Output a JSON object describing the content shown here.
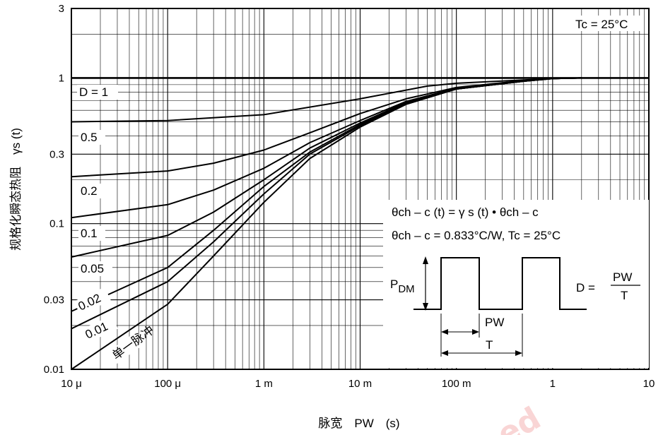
{
  "chart_data": {
    "type": "line",
    "x_scale": "log",
    "y_scale": "log",
    "xlim": [
      1e-05,
      10
    ],
    "ylim": [
      0.01,
      3
    ],
    "xlabel": "脉宽　PW　(s)",
    "ylabel": "规格化瞬态热阻　γs (t)",
    "x_ticks": [
      {
        "value": 1e-05,
        "label": "10 μ"
      },
      {
        "value": 0.0001,
        "label": "100 μ"
      },
      {
        "value": 0.001,
        "label": "1 m"
      },
      {
        "value": 0.01,
        "label": "10 m"
      },
      {
        "value": 0.1,
        "label": "100 m"
      },
      {
        "value": 1,
        "label": "1"
      },
      {
        "value": 10,
        "label": "10"
      }
    ],
    "y_ticks": [
      {
        "value": 0.01,
        "label": "0.01"
      },
      {
        "value": 0.03,
        "label": "0.03"
      },
      {
        "value": 0.1,
        "label": "0.1"
      },
      {
        "value": 0.3,
        "label": "0.3"
      },
      {
        "value": 1,
        "label": "1"
      },
      {
        "value": 3,
        "label": "3"
      }
    ],
    "annotation_tc": "Tc = 25°C",
    "series": [
      {
        "name": "D = 1",
        "x": [
          1e-05,
          10
        ],
        "y": [
          1,
          1
        ]
      },
      {
        "name": "0.5",
        "x": [
          1e-05,
          0.0001,
          0.001,
          0.01,
          0.05,
          0.1,
          0.5,
          1,
          2
        ],
        "y": [
          0.5,
          0.51,
          0.56,
          0.72,
          0.88,
          0.92,
          0.97,
          0.99,
          1.0
        ]
      },
      {
        "name": "0.2",
        "x": [
          1e-05,
          0.0001,
          0.0003,
          0.001,
          0.003,
          0.01,
          0.03,
          0.1,
          0.5,
          1,
          2
        ],
        "y": [
          0.21,
          0.23,
          0.26,
          0.32,
          0.42,
          0.57,
          0.72,
          0.86,
          0.96,
          0.99,
          1.0
        ]
      },
      {
        "name": "0.1",
        "x": [
          1e-05,
          0.0001,
          0.0003,
          0.001,
          0.003,
          0.01,
          0.03,
          0.1,
          0.5,
          1,
          2
        ],
        "y": [
          0.11,
          0.135,
          0.17,
          0.24,
          0.36,
          0.51,
          0.69,
          0.85,
          0.96,
          0.99,
          1.0
        ]
      },
      {
        "name": "0.05",
        "x": [
          1e-05,
          0.0001,
          0.0003,
          0.001,
          0.003,
          0.01,
          0.03,
          0.1,
          0.5,
          1,
          2
        ],
        "y": [
          0.059,
          0.083,
          0.12,
          0.2,
          0.33,
          0.49,
          0.68,
          0.84,
          0.95,
          0.99,
          1.0
        ]
      },
      {
        "name": "0.02",
        "x": [
          1e-05,
          0.0001,
          0.0003,
          0.001,
          0.003,
          0.01,
          0.03,
          0.1,
          0.5,
          1,
          2
        ],
        "y": [
          0.025,
          0.05,
          0.09,
          0.18,
          0.31,
          0.48,
          0.67,
          0.84,
          0.95,
          0.99,
          1.0
        ]
      },
      {
        "name": "0.01",
        "x": [
          1e-05,
          0.0001,
          0.0003,
          0.001,
          0.003,
          0.01,
          0.03,
          0.1,
          0.5,
          1,
          2
        ],
        "y": [
          0.019,
          0.04,
          0.075,
          0.16,
          0.3,
          0.47,
          0.66,
          0.84,
          0.95,
          0.99,
          1.0
        ]
      },
      {
        "name": "单一脉冲",
        "x": [
          1e-05,
          0.0001,
          0.0003,
          0.001,
          0.003,
          0.01,
          0.03,
          0.1,
          0.5,
          1,
          2
        ],
        "y": [
          0.01,
          0.028,
          0.06,
          0.14,
          0.28,
          0.46,
          0.66,
          0.84,
          0.95,
          0.99,
          1.0
        ]
      }
    ],
    "formula": {
      "line1": "θch – c (t) = γ s (t) • θch – c",
      "line2": "θch – c = 0.833°C/W, Tc = 25°C",
      "pdm_main": "P",
      "pdm_sub": "DM",
      "duty_left": "D =",
      "duty_num": "PW",
      "duty_den": "T",
      "pw_label": "PW",
      "t_label": "T"
    },
    "watermark": "ed"
  }
}
